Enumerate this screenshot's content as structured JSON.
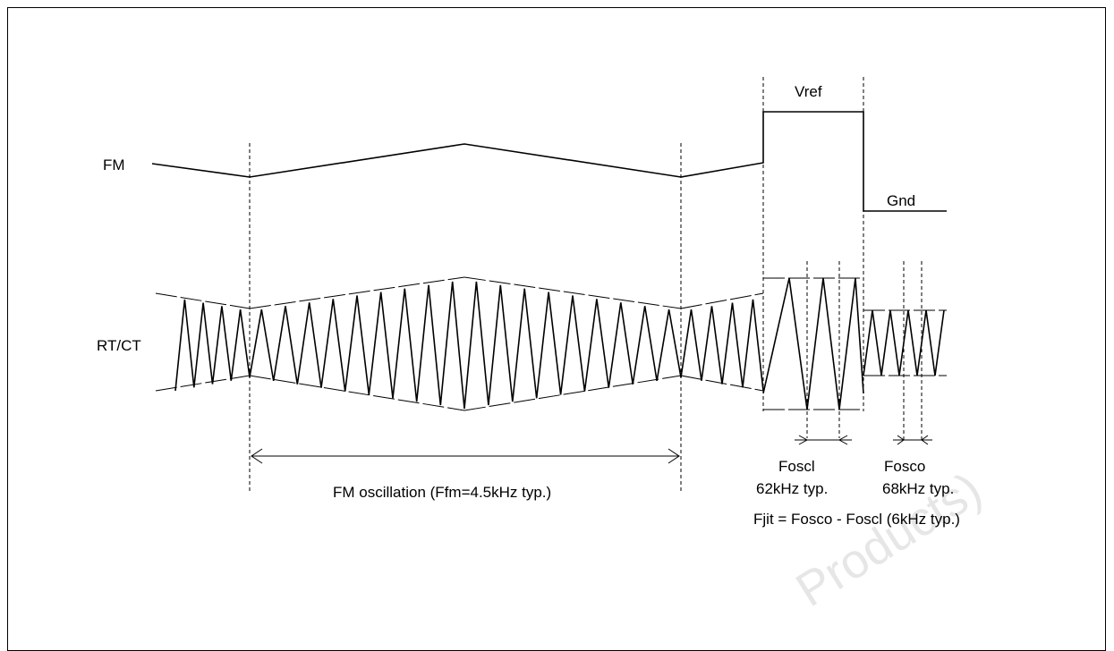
{
  "signals": {
    "fm_label": "FM",
    "rtct_label": "RT/CT"
  },
  "levels": {
    "vref_label": "Vref",
    "gnd_label": "Gnd"
  },
  "annotations": {
    "fm_oscillation": "FM oscillation (Ffm=4.5kHz typ.)",
    "foscl_name": "Foscl",
    "foscl_value": "62kHz typ.",
    "fosco_name": "Fosco",
    "fosco_value": "68kHz typ.",
    "fjit": "Fjit = Fosco - Foscl (6kHz typ.)"
  },
  "watermark": {
    "text": "Products)"
  },
  "colors": {
    "line": "#000000",
    "background": "#ffffff",
    "watermark": "#e6e6e6"
  }
}
